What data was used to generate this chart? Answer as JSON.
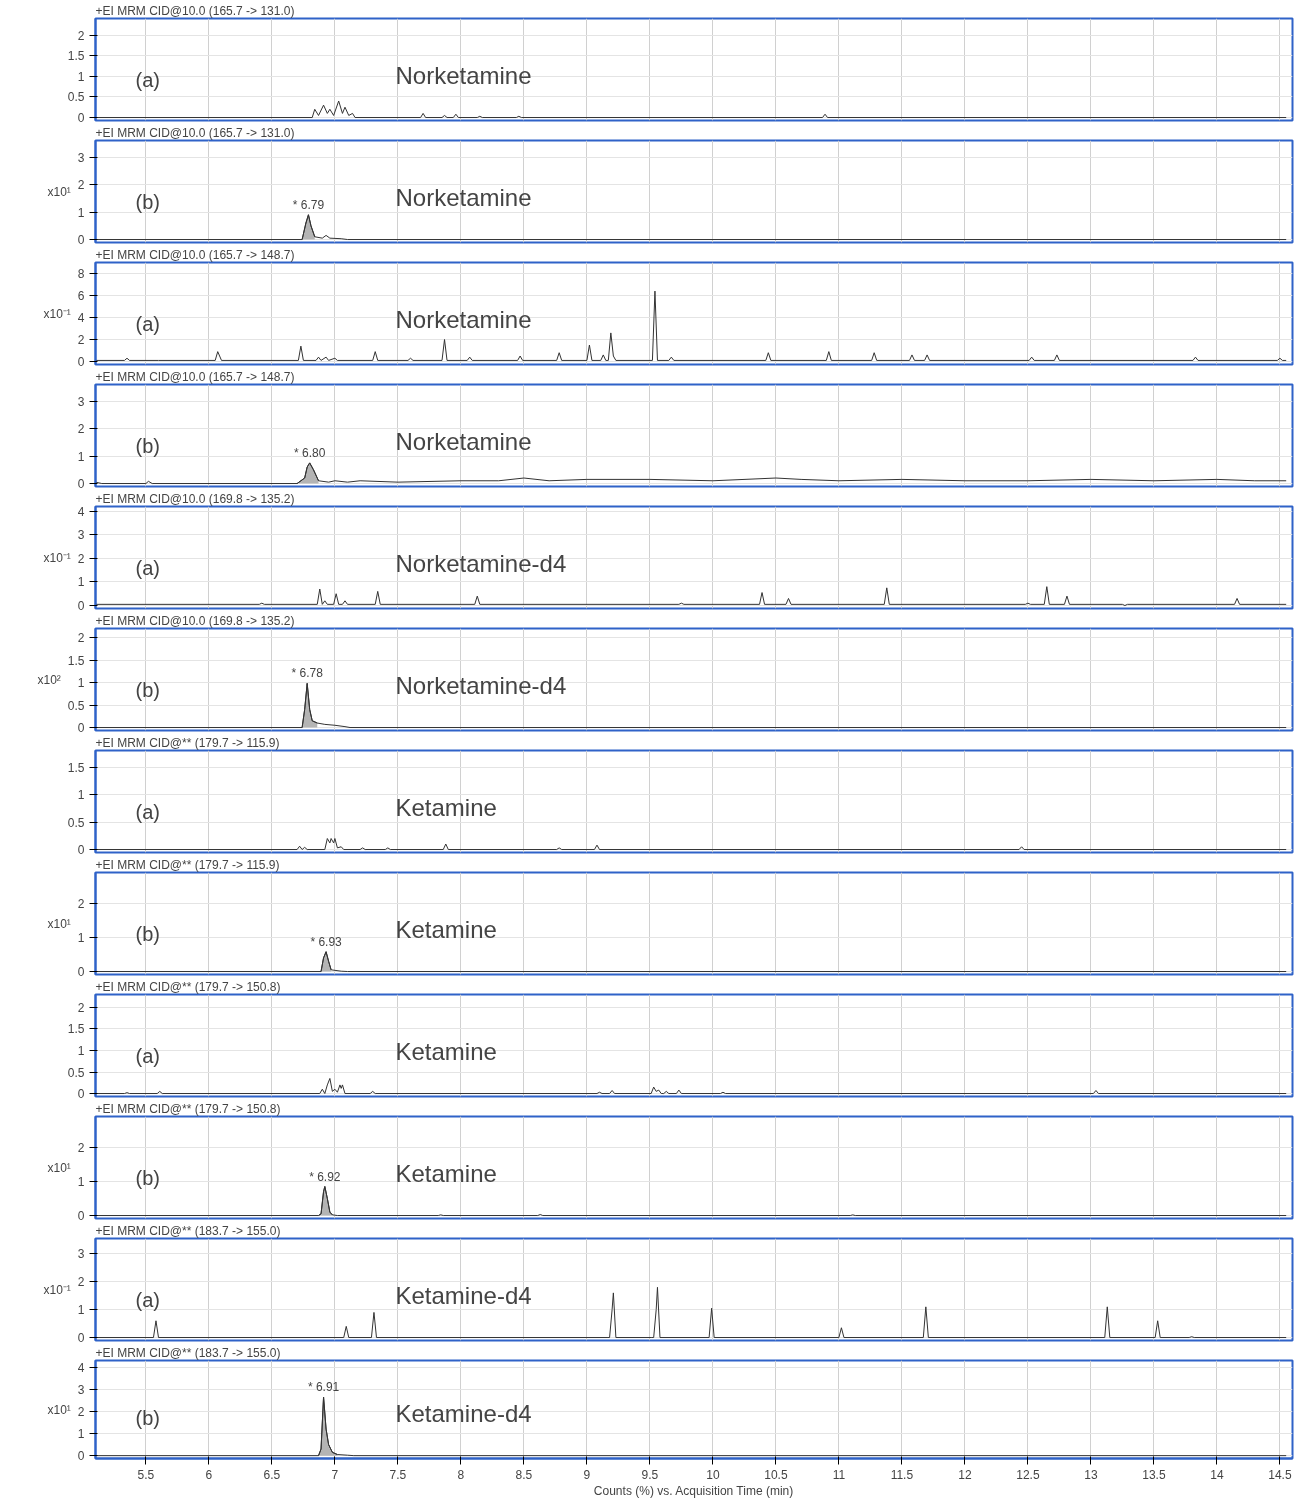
{
  "chart_data": [
    {
      "type": "line",
      "title": "+EI MRM CID@10.0 (165.7 -> 131.0)",
      "xlim": [
        5.1,
        14.6
      ],
      "ylim": [
        0,
        2.4
      ],
      "xticks": [
        5.5,
        6,
        6.5,
        7,
        7.5,
        8,
        8.5,
        9,
        9.5,
        10,
        10.5,
        11,
        11.5,
        12,
        12.5,
        13,
        13.5,
        14,
        14.5
      ],
      "yticks": [
        0,
        0.5,
        1,
        1.5,
        2
      ],
      "grid": true,
      "tick_labels": "y",
      "annotations": [
        "(a)",
        "Norketamine"
      ],
      "series": [
        {
          "color": "#333333",
          "x": [
            5.1,
            6.82,
            6.84,
            6.87,
            6.91,
            6.94,
            6.96,
            6.99,
            7.03,
            7.06,
            7.08,
            7.11,
            7.14,
            7.16,
            7.68,
            7.7,
            7.72,
            7.85,
            7.87,
            7.89,
            7.94,
            7.96,
            7.98,
            8.13,
            8.15,
            8.17,
            8.44,
            8.46,
            8.48,
            10.87,
            10.89,
            10.91,
            14.55
          ],
          "values": [
            0,
            0,
            0.2,
            0.05,
            0.3,
            0.1,
            0.2,
            0.05,
            0.4,
            0.1,
            0.25,
            0.05,
            0.1,
            0,
            0,
            0.1,
            0,
            0,
            0.05,
            0,
            0,
            0.08,
            0,
            0,
            0.03,
            0,
            0,
            0.03,
            0,
            0,
            0.08,
            0,
            0
          ]
        }
      ]
    },
    {
      "type": "line",
      "title": "+EI MRM CID@10.0 (165.7 -> 131.0)",
      "ylabel": "x10¹",
      "xlim": [
        5.1,
        14.6
      ],
      "ylim": [
        0,
        3.6
      ],
      "xticks": [
        5.5,
        6,
        6.5,
        7,
        7.5,
        8,
        8.5,
        9,
        9.5,
        10,
        10.5,
        11,
        11.5,
        12,
        12.5,
        13,
        13.5,
        14,
        14.5
      ],
      "yticks": [
        0,
        1,
        2,
        3
      ],
      "grid": true,
      "tick_labels": "y",
      "annotations": [
        "(b)",
        "Norketamine",
        {
          "text": "* 6.79",
          "x": 6.79,
          "y": 0.9
        }
      ],
      "series": [
        {
          "type": "area",
          "color": "#b4b4b4",
          "x": [
            6.74,
            6.77,
            6.79,
            6.81,
            6.84
          ],
          "values": [
            0,
            0.6,
            0.9,
            0.5,
            0.1
          ]
        },
        {
          "color": "#333333",
          "x": [
            5.1,
            6.74,
            6.77,
            6.79,
            6.81,
            6.84,
            6.9,
            6.93,
            6.96,
            7.05,
            7.1,
            14.55
          ],
          "values": [
            0,
            0,
            0.6,
            0.9,
            0.5,
            0.1,
            0.05,
            0.15,
            0.05,
            0.03,
            0,
            0
          ]
        }
      ]
    },
    {
      "type": "line",
      "title": "+EI MRM CID@10.0 (165.7 -> 148.7)",
      "ylabel": "x10⁻¹",
      "xlim": [
        5.1,
        14.6
      ],
      "ylim": [
        0,
        9
      ],
      "xticks": [
        5.5,
        6,
        6.5,
        7,
        7.5,
        8,
        8.5,
        9,
        9.5,
        10,
        10.5,
        11,
        11.5,
        12,
        12.5,
        13,
        13.5,
        14,
        14.5
      ],
      "yticks": [
        0,
        2,
        4,
        6,
        8
      ],
      "grid": true,
      "tick_labels": "y",
      "annotations": [
        "(a)",
        "Norketamine"
      ],
      "series": [
        {
          "color": "#333333",
          "x": [
            5.1,
            5.33,
            5.35,
            5.37,
            5.6,
            6.05,
            6.07,
            6.1,
            6.71,
            6.73,
            6.75,
            6.85,
            6.87,
            6.89,
            6.93,
            6.95,
            7.0,
            7.02,
            7.3,
            7.32,
            7.34,
            7.58,
            7.6,
            7.62,
            7.85,
            7.87,
            7.89,
            8.05,
            8.07,
            8.09,
            8.45,
            8.47,
            8.49,
            8.76,
            8.78,
            8.8,
            9.0,
            9.02,
            9.04,
            9.11,
            9.13,
            9.15,
            9.17,
            9.19,
            9.21,
            9.23,
            9.52,
            9.54,
            9.56,
            9.65,
            9.67,
            9.69,
            10.42,
            10.44,
            10.46,
            10.9,
            10.92,
            10.94,
            11.26,
            11.28,
            11.3,
            11.56,
            11.58,
            11.6,
            11.68,
            11.7,
            11.72,
            12.51,
            12.53,
            12.55,
            12.71,
            12.73,
            12.75,
            13.81,
            13.83,
            13.85,
            14.48,
            14.5,
            14.52,
            14.55
          ],
          "values": [
            0.1,
            0.1,
            0.3,
            0.1,
            0.1,
            0.1,
            0.9,
            0.1,
            0.1,
            1.4,
            0.1,
            0.1,
            0.4,
            0.1,
            0.4,
            0.1,
            0.3,
            0.1,
            0.1,
            0.9,
            0.1,
            0.1,
            0.3,
            0.1,
            0.1,
            2.0,
            0.1,
            0.1,
            0.4,
            0.1,
            0.1,
            0.5,
            0.1,
            0.1,
            0.8,
            0.1,
            0.1,
            1.5,
            0.1,
            0.1,
            0.6,
            0.1,
            0.1,
            2.6,
            0.5,
            0.1,
            0.1,
            6.4,
            0.1,
            0.1,
            0.4,
            0.1,
            0.1,
            0.8,
            0.1,
            0.1,
            0.9,
            0.1,
            0.1,
            0.8,
            0.1,
            0.1,
            0.6,
            0.1,
            0.1,
            0.6,
            0.1,
            0.1,
            0.4,
            0.1,
            0.1,
            0.6,
            0.1,
            0.1,
            0.4,
            0.1,
            0.1,
            0.3,
            0.1,
            0.1
          ]
        }
      ]
    },
    {
      "type": "line",
      "title": "+EI MRM CID@10.0 (165.7 -> 148.7)",
      "xlim": [
        5.1,
        14.6
      ],
      "ylim": [
        0,
        3.6
      ],
      "xticks": [
        5.5,
        6,
        6.5,
        7,
        7.5,
        8,
        8.5,
        9,
        9.5,
        10,
        10.5,
        11,
        11.5,
        12,
        12.5,
        13,
        13.5,
        14,
        14.5
      ],
      "yticks": [
        0,
        1,
        2,
        3
      ],
      "grid": true,
      "tick_labels": "y",
      "annotations": [
        "(b)",
        "Norketamine",
        {
          "text": "* 6.80",
          "x": 6.8,
          "y": 0.75
        }
      ],
      "series": [
        {
          "type": "area",
          "color": "#b4b4b4",
          "x": [
            6.7,
            6.76,
            6.78,
            6.8,
            6.83,
            6.87
          ],
          "values": [
            0,
            0.2,
            0.6,
            0.75,
            0.5,
            0.1
          ]
        },
        {
          "color": "#333333",
          "x": [
            5.1,
            5.15,
            5.5,
            5.52,
            5.55,
            6.7,
            6.76,
            6.78,
            6.8,
            6.83,
            6.87,
            6.95,
            7.0,
            7.1,
            7.2,
            7.5,
            8.0,
            8.3,
            8.5,
            8.7,
            9.0,
            9.5,
            10.0,
            10.5,
            10.7,
            11.0,
            11.5,
            12.0,
            12.5,
            13.0,
            13.5,
            14.0,
            14.3,
            14.55
          ],
          "values": [
            0.05,
            0,
            0,
            0.08,
            0,
            0,
            0.2,
            0.6,
            0.75,
            0.5,
            0.1,
            0.05,
            0.1,
            0.05,
            0.1,
            0.05,
            0.1,
            0.1,
            0.2,
            0.1,
            0.15,
            0.15,
            0.1,
            0.2,
            0.15,
            0.1,
            0.15,
            0.1,
            0.1,
            0.15,
            0.1,
            0.15,
            0.1,
            0.1
          ]
        }
      ]
    },
    {
      "type": "line",
      "title": "+EI MRM CID@10.0 (169.8 -> 135.2)",
      "ylabel": "x10⁻¹",
      "xlim": [
        5.1,
        14.6
      ],
      "ylim": [
        0,
        4.2
      ],
      "xticks": [
        5.5,
        6,
        6.5,
        7,
        7.5,
        8,
        8.5,
        9,
        9.5,
        10,
        10.5,
        11,
        11.5,
        12,
        12.5,
        13,
        13.5,
        14,
        14.5
      ],
      "yticks": [
        0,
        1,
        2,
        3,
        4
      ],
      "grid": true,
      "tick_labels": "y",
      "annotations": [
        "(a)",
        "Norketamine-d4"
      ],
      "series": [
        {
          "color": "#333333",
          "x": [
            5.1,
            6.4,
            6.42,
            6.44,
            6.86,
            6.88,
            6.9,
            6.92,
            6.94,
            6.99,
            7.01,
            7.03,
            7.06,
            7.08,
            7.1,
            7.32,
            7.34,
            7.36,
            8.11,
            8.13,
            8.15,
            9.73,
            9.75,
            9.77,
            10.37,
            10.39,
            10.41,
            10.58,
            10.6,
            10.62,
            11.36,
            11.38,
            11.4,
            12.48,
            12.5,
            12.52,
            12.63,
            12.65,
            12.67,
            12.79,
            12.81,
            12.83,
            13.25,
            13.27,
            13.29,
            14.14,
            14.16,
            14.18,
            14.55
          ],
          "values": [
            0.05,
            0.05,
            0.1,
            0.05,
            0.05,
            0.7,
            0.05,
            0.2,
            0.05,
            0.05,
            0.5,
            0.05,
            0.05,
            0.2,
            0.05,
            0.05,
            0.6,
            0.05,
            0.05,
            0.4,
            0.05,
            0.05,
            0.1,
            0.05,
            0.05,
            0.55,
            0.05,
            0.05,
            0.3,
            0.05,
            0.05,
            0.75,
            0.05,
            0.05,
            0.1,
            0.05,
            0.05,
            0.8,
            0.05,
            0.05,
            0.4,
            0.05,
            0.05,
            0,
            0.05,
            0.05,
            0.3,
            0.05,
            0.05
          ]
        }
      ]
    },
    {
      "type": "line",
      "title": "+EI MRM CID@10.0 (169.8 -> 135.2)",
      "ylabel": "x10²",
      "xlim": [
        5.1,
        14.6
      ],
      "ylim": [
        0,
        2.2
      ],
      "xticks": [
        5.5,
        6,
        6.5,
        7,
        7.5,
        8,
        8.5,
        9,
        9.5,
        10,
        10.5,
        11,
        11.5,
        12,
        12.5,
        13,
        13.5,
        14,
        14.5
      ],
      "yticks": [
        0,
        0.5,
        1,
        1.5,
        2
      ],
      "grid": true,
      "tick_labels": "y",
      "annotations": [
        "(b)",
        "Norketamine-d4",
        {
          "text": "* 6.78",
          "x": 6.78,
          "y": 0.98
        }
      ],
      "series": [
        {
          "type": "area",
          "color": "#b4b4b4",
          "x": [
            6.74,
            6.76,
            6.78,
            6.8,
            6.82,
            6.86
          ],
          "values": [
            0,
            0.4,
            0.98,
            0.4,
            0.15,
            0.1
          ]
        },
        {
          "color": "#333333",
          "x": [
            5.1,
            6.74,
            6.76,
            6.78,
            6.8,
            6.82,
            6.86,
            6.92,
            7.0,
            7.08,
            7.12,
            14.55
          ],
          "values": [
            0,
            0,
            0.4,
            0.98,
            0.4,
            0.15,
            0.1,
            0.07,
            0.05,
            0.02,
            0,
            0
          ]
        }
      ]
    },
    {
      "type": "line",
      "title": "+EI MRM CID@** (179.7 -> 115.9)",
      "xlim": [
        5.1,
        14.6
      ],
      "ylim": [
        0,
        1.8
      ],
      "xticks": [
        5.5,
        6,
        6.5,
        7,
        7.5,
        8,
        8.5,
        9,
        9.5,
        10,
        10.5,
        11,
        11.5,
        12,
        12.5,
        13,
        13.5,
        14,
        14.5
      ],
      "yticks": [
        0,
        0.5,
        1,
        1.5
      ],
      "grid": true,
      "tick_labels": "y",
      "annotations": [
        "(a)",
        "Ketamine"
      ],
      "series": [
        {
          "color": "#333333",
          "x": [
            5.1,
            6.7,
            6.72,
            6.74,
            6.76,
            6.78,
            6.92,
            6.94,
            6.96,
            6.97,
            6.99,
            7.0,
            7.02,
            7.05,
            7.07,
            7.2,
            7.22,
            7.24,
            7.4,
            7.42,
            7.44,
            7.86,
            7.88,
            7.9,
            8.76,
            8.78,
            8.8,
            9.06,
            9.08,
            9.1,
            12.43,
            12.45,
            12.47,
            14.55
          ],
          "values": [
            0,
            0,
            0.06,
            0,
            0.04,
            0,
            0,
            0.2,
            0.12,
            0.2,
            0.12,
            0.2,
            0.03,
            0.05,
            0,
            0,
            0.03,
            0,
            0,
            0.03,
            0,
            0,
            0.1,
            0,
            0,
            0.03,
            0,
            0,
            0.08,
            0,
            0,
            0.05,
            0,
            0
          ]
        }
      ]
    },
    {
      "type": "line",
      "title": "+EI MRM CID@** (179.7 -> 115.9)",
      "ylabel": "x10¹",
      "xlim": [
        5.1,
        14.6
      ],
      "ylim": [
        0,
        2.9
      ],
      "xticks": [
        5.5,
        6,
        6.5,
        7,
        7.5,
        8,
        8.5,
        9,
        9.5,
        10,
        10.5,
        11,
        11.5,
        12,
        12.5,
        13,
        13.5,
        14,
        14.5
      ],
      "yticks": [
        0,
        1,
        2
      ],
      "grid": true,
      "tick_labels": "y",
      "annotations": [
        "(b)",
        "Ketamine",
        {
          "text": "* 6.93",
          "x": 6.93,
          "y": 0.58
        }
      ],
      "series": [
        {
          "type": "area",
          "color": "#b4b4b4",
          "x": [
            6.89,
            6.91,
            6.93,
            6.95,
            6.97
          ],
          "values": [
            0,
            0.4,
            0.58,
            0.3,
            0.05
          ]
        },
        {
          "color": "#333333",
          "x": [
            5.1,
            6.89,
            6.91,
            6.93,
            6.95,
            6.97,
            7.05,
            7.1,
            14.55
          ],
          "values": [
            0,
            0,
            0.4,
            0.58,
            0.3,
            0.05,
            0.01,
            0,
            0
          ]
        }
      ]
    },
    {
      "type": "line",
      "title": "+EI MRM CID@** (179.7 -> 150.8)",
      "xlim": [
        5.1,
        14.6
      ],
      "ylim": [
        0,
        2.3
      ],
      "xticks": [
        5.5,
        6,
        6.5,
        7,
        7.5,
        8,
        8.5,
        9,
        9.5,
        10,
        10.5,
        11,
        11.5,
        12,
        12.5,
        13,
        13.5,
        14,
        14.5
      ],
      "yticks": [
        0,
        0.5,
        1,
        1.5,
        2
      ],
      "grid": true,
      "tick_labels": "y",
      "annotations": [
        "(a)",
        "Ketamine"
      ],
      "series": [
        {
          "color": "#333333",
          "x": [
            5.1,
            5.33,
            5.35,
            5.37,
            5.59,
            5.61,
            5.63,
            6.88,
            6.9,
            6.92,
            6.94,
            6.96,
            6.98,
            7.0,
            7.02,
            7.04,
            7.05,
            7.06,
            7.08,
            7.28,
            7.3,
            7.32,
            9.08,
            9.1,
            9.12,
            9.18,
            9.2,
            9.22,
            9.51,
            9.53,
            9.55,
            9.57,
            9.59,
            9.61,
            9.63,
            9.65,
            9.71,
            9.73,
            9.75,
            10.06,
            10.08,
            10.1,
            13.02,
            13.04,
            13.06,
            14.55
          ],
          "values": [
            0,
            0,
            0.02,
            0,
            0,
            0.05,
            0,
            0,
            0.1,
            0,
            0.2,
            0.35,
            0.05,
            0.1,
            0.03,
            0.2,
            0.12,
            0.2,
            0,
            0,
            0.05,
            0,
            0,
            0.03,
            0,
            0,
            0.07,
            0,
            0,
            0.15,
            0.05,
            0.08,
            0,
            0,
            0.05,
            0,
            0,
            0.08,
            0,
            0,
            0.03,
            0,
            0,
            0.07,
            0,
            0
          ]
        }
      ]
    },
    {
      "type": "line",
      "title": "+EI MRM CID@** (179.7 -> 150.8)",
      "ylabel": "x10¹",
      "xlim": [
        5.1,
        14.6
      ],
      "ylim": [
        0,
        2.9
      ],
      "xticks": [
        5.5,
        6,
        6.5,
        7,
        7.5,
        8,
        8.5,
        9,
        9.5,
        10,
        10.5,
        11,
        11.5,
        12,
        12.5,
        13,
        13.5,
        14,
        14.5
      ],
      "yticks": [
        0,
        1,
        2
      ],
      "grid": true,
      "tick_labels": "y",
      "annotations": [
        "(b)",
        "Ketamine",
        {
          "text": "* 6.92",
          "x": 6.92,
          "y": 0.85
        }
      ],
      "series": [
        {
          "type": "area",
          "color": "#b4b4b4",
          "x": [
            6.87,
            6.89,
            6.91,
            6.92,
            6.94,
            6.96,
            6.98
          ],
          "values": [
            0,
            0.05,
            0.7,
            0.85,
            0.5,
            0.1,
            0.02
          ]
        },
        {
          "color": "#333333",
          "x": [
            5.1,
            6.87,
            6.89,
            6.91,
            6.92,
            6.94,
            6.96,
            6.98,
            7.02,
            7.82,
            7.84,
            7.86,
            8.61,
            8.63,
            8.65,
            11.09,
            11.11,
            11.13,
            14.55
          ],
          "values": [
            0,
            0,
            0.05,
            0.7,
            0.85,
            0.5,
            0.1,
            0.02,
            0,
            0,
            0.02,
            0,
            0,
            0.03,
            0,
            0,
            0.02,
            0,
            0
          ]
        }
      ]
    },
    {
      "type": "line",
      "title": "+EI MRM CID@** (183.7 -> 155.0)",
      "ylabel": "x10⁻¹",
      "xlim": [
        5.1,
        14.6
      ],
      "ylim": [
        0,
        3.55
      ],
      "xticks": [
        5.5,
        6,
        6.5,
        7,
        7.5,
        8,
        8.5,
        9,
        9.5,
        10,
        10.5,
        11,
        11.5,
        12,
        12.5,
        13,
        13.5,
        14,
        14.5
      ],
      "yticks": [
        0,
        1,
        2,
        3
      ],
      "grid": true,
      "tick_labels": "y",
      "annotations": [
        "(a)",
        "Ketamine-d4"
      ],
      "series": [
        {
          "color": "#333333",
          "x": [
            5.1,
            5.56,
            5.58,
            5.6,
            7.07,
            7.09,
            7.11,
            7.29,
            7.31,
            7.33,
            9.16,
            9.18,
            9.2,
            9.21,
            9.23,
            9.51,
            9.53,
            9.55,
            9.56,
            9.58,
            9.97,
            9.99,
            10.01,
            11.0,
            11.02,
            11.04,
            11.67,
            11.69,
            11.71,
            13.11,
            13.13,
            13.15,
            13.51,
            13.53,
            13.55,
            13.78,
            13.8,
            13.82,
            14.55
          ],
          "values": [
            0,
            0,
            0.6,
            0,
            0,
            0.4,
            0,
            0,
            0.9,
            0,
            0,
            null,
            1.0,
            1.6,
            0,
            0,
            null,
            1.0,
            1.8,
            0,
            0,
            1.05,
            0,
            0,
            0.35,
            0,
            0,
            1.1,
            0,
            0,
            1.1,
            0,
            0,
            0.6,
            0,
            0,
            0.03,
            0,
            0
          ]
        }
      ]
    },
    {
      "type": "line",
      "title": "+EI MRM CID@** (183.7 -> 155.0)",
      "ylabel": "x10¹",
      "xlabel": "Counts (%) vs. Acquisition Time (min)",
      "xlim": [
        5.1,
        14.6
      ],
      "ylim": [
        0,
        4.3
      ],
      "xticks": [
        5.5,
        6,
        6.5,
        7,
        7.5,
        8,
        8.5,
        9,
        9.5,
        10,
        10.5,
        11,
        11.5,
        12,
        12.5,
        13,
        13.5,
        14,
        14.5
      ],
      "yticks": [
        0,
        1,
        2,
        3,
        4
      ],
      "grid": true,
      "annotations": [
        "(b)",
        "Ketamine-d4",
        {
          "text": "* 6.91",
          "x": 6.91,
          "y": 2.65
        }
      ],
      "series": [
        {
          "type": "area",
          "color": "#b4b4b4",
          "x": [
            6.87,
            6.89,
            6.91,
            6.93,
            6.95,
            6.98,
            7.02
          ],
          "values": [
            0,
            0.3,
            2.65,
            1.2,
            0.5,
            0.15,
            0.05
          ]
        },
        {
          "color": "#333333",
          "x": [
            5.1,
            6.87,
            6.89,
            6.91,
            6.93,
            6.95,
            6.98,
            7.02,
            7.1,
            7.15,
            14.55
          ],
          "values": [
            0,
            0,
            0.3,
            2.65,
            1.2,
            0.5,
            0.15,
            0.05,
            0.02,
            0,
            0
          ]
        }
      ]
    }
  ]
}
